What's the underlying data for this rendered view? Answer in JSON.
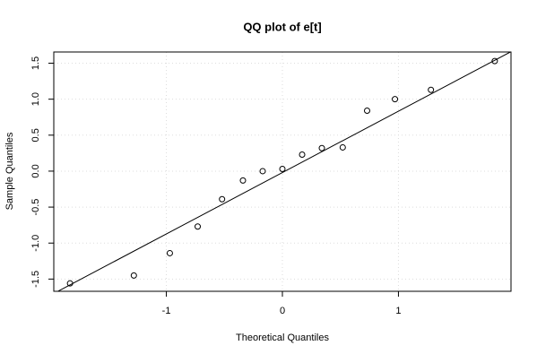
{
  "chart_data": {
    "type": "scatter",
    "title": "QQ plot of e[t]",
    "x_label": "Theoretical Quantiles",
    "y_label": "Sample Quantiles",
    "x": [
      -1.83,
      -1.28,
      -0.97,
      -0.73,
      -0.52,
      -0.34,
      -0.17,
      0,
      0.17,
      0.34,
      0.52,
      0.73,
      0.97,
      1.28,
      1.83
    ],
    "values": [
      -1.56,
      -1.45,
      -1.14,
      -0.77,
      -0.39,
      -0.13,
      0.0,
      0.03,
      0.23,
      0.32,
      0.33,
      0.84,
      1.0,
      1.13,
      1.53
    ],
    "color": "#000000",
    "qq_line": {
      "intercept": -0.02,
      "slope": 0.853
    },
    "xlim": [
      -1.97,
      1.97
    ],
    "ylim": [
      -1.67,
      1.656
    ],
    "xticks": [
      -1,
      0,
      1
    ],
    "yticks": [
      -1.5,
      {
        "value": -1,
        "label": "-1.0"
      },
      -0.5,
      {
        "value": 0,
        "label": "0.0"
      },
      0.5,
      {
        "value": 1,
        "label": "1.0"
      },
      1.5
    ],
    "grid": true
  }
}
